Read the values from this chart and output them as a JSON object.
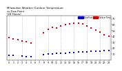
{
  "title": "Milwaukee Weather Outdoor Temperature",
  "title2": "vs Dew Point",
  "title3": "(24 Hours)",
  "title_fontsize": 2.8,
  "background_color": "#ffffff",
  "grid_color": "#aaaaaa",
  "ylim": [
    0,
    75
  ],
  "xlim": [
    -0.5,
    23.5
  ],
  "ylabel_fontsize": 2.5,
  "xlabel_fontsize": 2.3,
  "yticks": [
    10,
    20,
    30,
    40,
    50,
    60,
    70
  ],
  "xticks": [
    0,
    1,
    2,
    3,
    4,
    5,
    6,
    7,
    8,
    9,
    10,
    11,
    12,
    13,
    14,
    15,
    16,
    17,
    18,
    19,
    20,
    21,
    22,
    23
  ],
  "temp_color": "#cc0000",
  "dew_color": "#0000cc",
  "temp_x": [
    0,
    1,
    2,
    3,
    4,
    5,
    8,
    9,
    10,
    11,
    12,
    13,
    14,
    15,
    16,
    17,
    18,
    19,
    20,
    21,
    22,
    23
  ],
  "temp_y": [
    38,
    36,
    35,
    33,
    31,
    29,
    46,
    52,
    56,
    55,
    58,
    60,
    62,
    63,
    63,
    62,
    58,
    55,
    51,
    47,
    43,
    40
  ],
  "dew_x": [
    0,
    1,
    3,
    4,
    5,
    8,
    9,
    10,
    11,
    12,
    13,
    14,
    15,
    16,
    17,
    18,
    19,
    20,
    21,
    22,
    23
  ],
  "dew_y": [
    8,
    8,
    7,
    6,
    6,
    9,
    10,
    10,
    11,
    12,
    12,
    13,
    13,
    14,
    14,
    14,
    15,
    15,
    15,
    16,
    16
  ],
  "legend_temp_label": "Outdoor Temp",
  "legend_dew_label": "Dew Point",
  "dot_size": 3.0,
  "marker": "s"
}
